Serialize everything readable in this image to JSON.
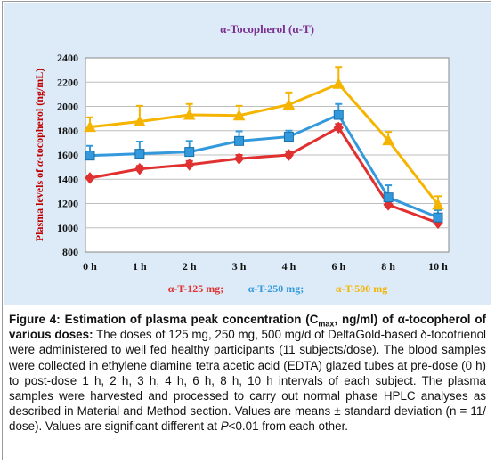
{
  "chart_data": {
    "type": "line",
    "title": "α-Tocopherol (α-T)",
    "ylabel_prefix": "Plasma levels of ",
    "ylabel_emph": "α",
    "ylabel_suffix": "-tocopherol (ng/mL)",
    "categories": [
      "0 h",
      "1 h",
      "2 h",
      "3 h",
      "4 h",
      "6 h",
      "8 h",
      "10 h"
    ],
    "ylim": [
      800,
      2400
    ],
    "yticks": [
      800,
      1000,
      1200,
      1400,
      1600,
      1800,
      2000,
      2200,
      2400
    ],
    "grid": true,
    "legend_position": "bottom",
    "series": [
      {
        "name": "α-T-125 mg;",
        "color": "#e03030",
        "marker": "diamond",
        "values": [
          1410,
          1485,
          1520,
          1570,
          1600,
          1825,
          1190,
          1040
        ],
        "errors": [
          20,
          25,
          30,
          30,
          30,
          30,
          30,
          30
        ]
      },
      {
        "name": "α-T-250 mg;",
        "color": "#3399dd",
        "marker": "square",
        "values": [
          1595,
          1610,
          1625,
          1715,
          1750,
          1930,
          1250,
          1085
        ],
        "errors": [
          80,
          100,
          90,
          80,
          50,
          90,
          100,
          60
        ]
      },
      {
        "name": "α-T-500 mg",
        "color": "#f5b400",
        "marker": "triangle",
        "values": [
          1830,
          1875,
          1930,
          1925,
          2015,
          2185,
          1720,
          1190
        ],
        "errors": [
          80,
          130,
          90,
          80,
          100,
          140,
          70,
          70
        ]
      }
    ]
  },
  "caption": {
    "lead_a": "Figure 4: Estimation of plasma peak concentration (C",
    "lead_sub": "max",
    "lead_b": ", ng/ml) of α-tocopherol of various doses:",
    "body_a": " The doses of 125 mg, 250 mg, 500 mg/d of DeltaGold-based δ-tocotrienol were administered to well fed healthy participants (11 subjects/dose). The blood samples were collected in ethylene diamine tetra acetic acid (EDTA) glazed tubes at pre-dose (0 h) to post-dose 1 h, 2 h, 3 h, 4 h, 6 h, 8 h, 10 h intervals of each subject. The plasma samples were harvested and processed to carry out normal phase HPLC analyses as described in Material and Method section. Values are means ± standard deviation (n = 11/ dose). Values are significant different at ",
    "body_p": "P",
    "body_b": "<0.01 from each other."
  }
}
